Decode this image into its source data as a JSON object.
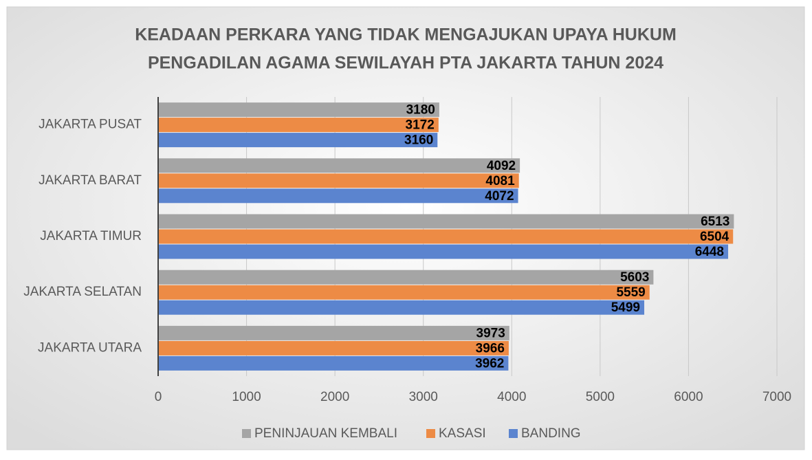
{
  "chart_data": {
    "type": "hbar",
    "title": [
      "KEADAAN PERKARA YANG TIDAK MENGAJUKAN UPAYA HUKUM",
      "PENGADILAN AGAMA  SEWILAYAH PTA JAKARTA TAHUN 2024"
    ],
    "categories": [
      "JAKARTA PUSAT",
      "JAKARTA BARAT",
      "JAKARTA TIMUR",
      "JAKARTA SELATAN",
      "JAKARTA UTARA"
    ],
    "series": [
      {
        "name": "PENINJAUAN KEMBALI",
        "color": "#a5a5a5",
        "values": [
          3180,
          4092,
          6513,
          5603,
          3973
        ]
      },
      {
        "name": "KASASI",
        "color": "#ed8b45",
        "values": [
          3172,
          4081,
          6504,
          5559,
          3966
        ]
      },
      {
        "name": "BANDING",
        "color": "#5b84cf",
        "values": [
          3160,
          4072,
          6448,
          5499,
          3962
        ]
      }
    ],
    "xlim": [
      0,
      7000
    ],
    "xticks": [
      0,
      1000,
      2000,
      3000,
      4000,
      5000,
      6000,
      7000
    ],
    "grid": true,
    "legend": "bottom"
  }
}
